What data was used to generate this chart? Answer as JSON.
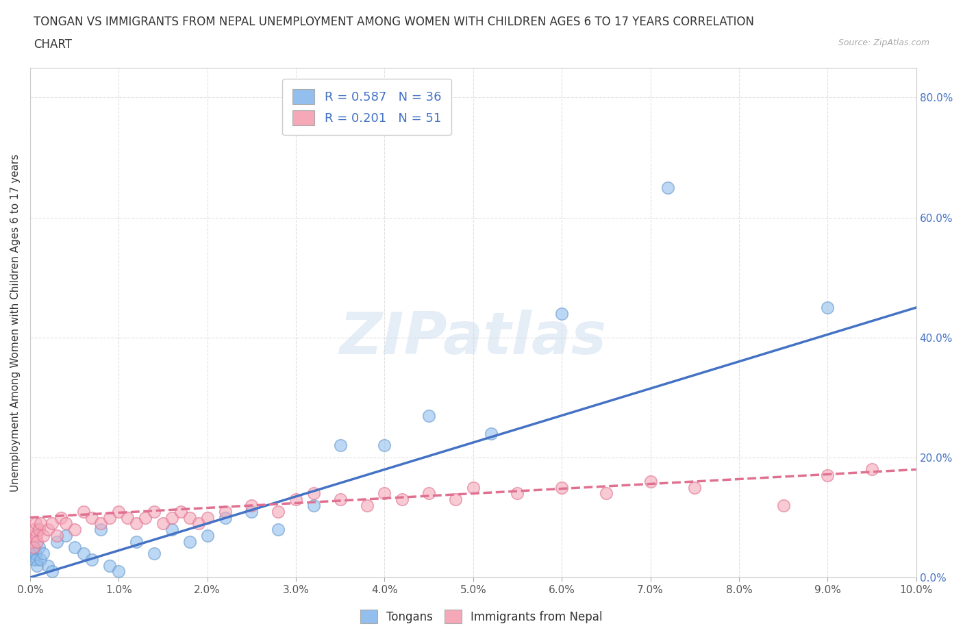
{
  "title_line1": "TONGAN VS IMMIGRANTS FROM NEPAL UNEMPLOYMENT AMONG WOMEN WITH CHILDREN AGES 6 TO 17 YEARS CORRELATION",
  "title_line2": "CHART",
  "source": "Source: ZipAtlas.com",
  "ylabel": "Unemployment Among Women with Children Ages 6 to 17 years",
  "watermark": "ZIPatlas",
  "legend_labels": [
    "Tongans",
    "Immigrants from Nepal"
  ],
  "legend_r": [
    0.587,
    0.201
  ],
  "legend_n": [
    36,
    51
  ],
  "tongans_x": [
    0.0002,
    0.0003,
    0.0004,
    0.0005,
    0.0006,
    0.0007,
    0.0008,
    0.001,
    0.0012,
    0.0015,
    0.002,
    0.0025,
    0.003,
    0.004,
    0.005,
    0.006,
    0.007,
    0.008,
    0.009,
    0.01,
    0.012,
    0.014,
    0.016,
    0.018,
    0.02,
    0.022,
    0.025,
    0.028,
    0.032,
    0.035,
    0.04,
    0.045,
    0.052,
    0.06,
    0.072,
    0.09
  ],
  "tongans_y": [
    0.05,
    0.04,
    0.03,
    0.05,
    0.04,
    0.03,
    0.02,
    0.05,
    0.03,
    0.04,
    0.02,
    0.01,
    0.06,
    0.07,
    0.05,
    0.04,
    0.03,
    0.08,
    0.02,
    0.01,
    0.06,
    0.04,
    0.08,
    0.06,
    0.07,
    0.1,
    0.11,
    0.08,
    0.12,
    0.22,
    0.22,
    0.27,
    0.24,
    0.44,
    0.65,
    0.45
  ],
  "nepal_x": [
    0.0002,
    0.0003,
    0.0004,
    0.0005,
    0.0006,
    0.0007,
    0.0008,
    0.001,
    0.0012,
    0.0015,
    0.002,
    0.0025,
    0.003,
    0.0035,
    0.004,
    0.005,
    0.006,
    0.007,
    0.008,
    0.009,
    0.01,
    0.011,
    0.012,
    0.013,
    0.014,
    0.015,
    0.016,
    0.017,
    0.018,
    0.019,
    0.02,
    0.022,
    0.025,
    0.028,
    0.03,
    0.032,
    0.035,
    0.038,
    0.04,
    0.042,
    0.045,
    0.048,
    0.05,
    0.055,
    0.06,
    0.065,
    0.07,
    0.075,
    0.085,
    0.09,
    0.095
  ],
  "nepal_y": [
    0.06,
    0.07,
    0.05,
    0.08,
    0.09,
    0.07,
    0.06,
    0.08,
    0.09,
    0.07,
    0.08,
    0.09,
    0.07,
    0.1,
    0.09,
    0.08,
    0.11,
    0.1,
    0.09,
    0.1,
    0.11,
    0.1,
    0.09,
    0.1,
    0.11,
    0.09,
    0.1,
    0.11,
    0.1,
    0.09,
    0.1,
    0.11,
    0.12,
    0.11,
    0.13,
    0.14,
    0.13,
    0.12,
    0.14,
    0.13,
    0.14,
    0.13,
    0.15,
    0.14,
    0.15,
    0.14,
    0.16,
    0.15,
    0.12,
    0.17,
    0.18
  ],
  "tongans_color": "#92BFED",
  "tongans_edge_color": "#6699CC",
  "nepal_color": "#F4A8B8",
  "nepal_edge_color": "#E07090",
  "tongans_line_color": "#4472C4",
  "nepal_line_color": "#E07090",
  "background_color": "#FFFFFF",
  "grid_color": "#DDDDDD",
  "xlim": [
    0.0,
    0.1
  ],
  "ylim": [
    0.0,
    0.85
  ],
  "xticks": [
    0.0,
    0.01,
    0.02,
    0.03,
    0.04,
    0.05,
    0.06,
    0.07,
    0.08,
    0.09,
    0.1
  ],
  "yticks": [
    0.0,
    0.2,
    0.4,
    0.6,
    0.8
  ],
  "xtick_labels": [
    "0.0%",
    "1.0%",
    "2.0%",
    "3.0%",
    "4.0%",
    "5.0%",
    "6.0%",
    "7.0%",
    "8.0%",
    "9.0%",
    "10.0%"
  ],
  "ytick_labels": [
    "0.0%",
    "20.0%",
    "40.0%",
    "60.0%",
    "80.0%"
  ],
  "trendline_tongans": [
    0.0,
    0.0,
    0.1,
    0.45
  ],
  "trendline_nepal": [
    0.0,
    0.1,
    0.1,
    0.18
  ]
}
